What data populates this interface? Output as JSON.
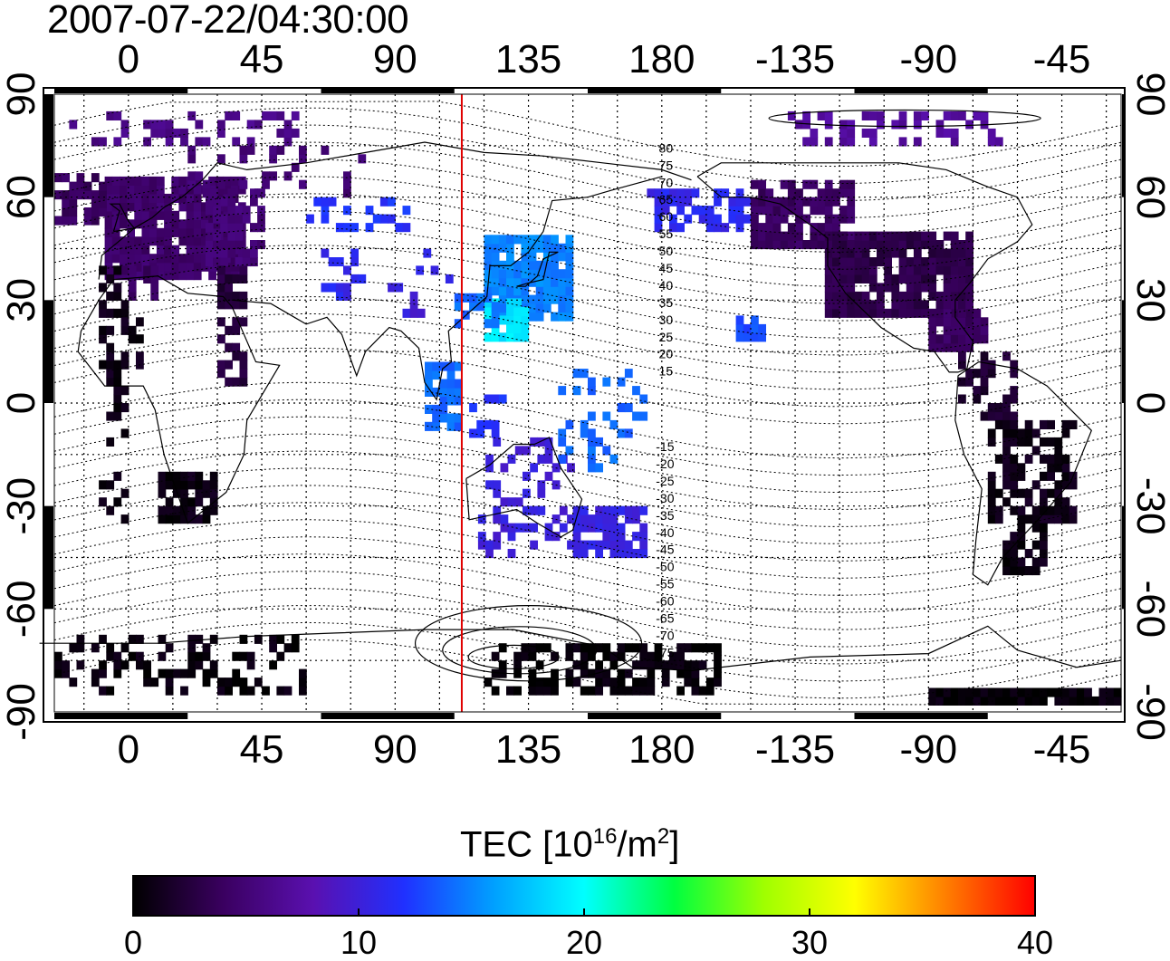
{
  "timestamp": "2007-07-22/04:30:00",
  "colorbar": {
    "title_prefix": "TEC  [10",
    "title_exp1": "16",
    "title_mid": "/m",
    "title_exp2": "2",
    "title_suffix": "]",
    "ticks": [
      "0",
      "10",
      "20",
      "30",
      "40"
    ],
    "range": [
      0,
      40
    ],
    "colormap": [
      "#000000",
      "#3a0060",
      "#5a10b0",
      "#2030ff",
      "#00a0ff",
      "#00ffff",
      "#00ff40",
      "#a0ff00",
      "#ffff00",
      "#ff8000",
      "#ff0000"
    ]
  },
  "map": {
    "lon_ticks": [
      "0",
      "45",
      "90",
      "135",
      "180",
      "-135",
      "-90",
      "-45"
    ],
    "lat_ticks": [
      "90",
      "60",
      "30",
      "0",
      "-30",
      "-60",
      "-90"
    ],
    "lon_range": [
      -25,
      335
    ],
    "lat_range": [
      -90,
      90
    ],
    "grid_step_deg": 15,
    "meridian_line": {
      "lon": 112.5,
      "color": "#e00000"
    },
    "contour_labels_north": [
      "80",
      "75",
      "70",
      "65",
      "60",
      "55",
      "50",
      "45",
      "40",
      "35",
      "30",
      "25",
      "20",
      "15"
    ],
    "contour_labels_south": [
      "-15",
      "-20",
      "-25",
      "-30",
      "-35",
      "-40",
      "-45",
      "-50",
      "-55",
      "-60",
      "-65",
      "-70",
      "-75"
    ]
  }
}
